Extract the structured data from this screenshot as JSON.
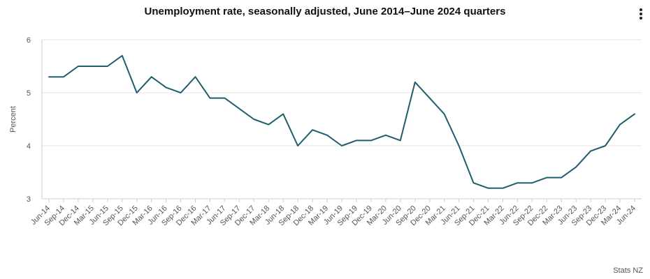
{
  "header": {
    "title": "Unemployment rate, seasonally adjusted, June 2014–June 2024 quarters",
    "menu_icon": "vertical-ellipsis-icon"
  },
  "credit": "Stats NZ",
  "colors": {
    "line": "#1f5d6e",
    "grid": "#e6e6e6",
    "axis": "#cccccc"
  },
  "chart_data": {
    "type": "line",
    "title": "Unemployment rate, seasonally adjusted, June 2014–June 2024 quarters",
    "xlabel": "",
    "ylabel": "Percent",
    "ylim": [
      3,
      6
    ],
    "yticks": [
      3,
      4,
      5,
      6
    ],
    "grid": true,
    "legend": "none",
    "categories": [
      "Jun-14",
      "Sep-14",
      "Dec-14",
      "Mar-15",
      "Jun-15",
      "Sep-15",
      "Dec-15",
      "Mar-16",
      "Jun-16",
      "Sep-16",
      "Dec-16",
      "Mar-17",
      "Jun-17",
      "Sep-17",
      "Dec-17",
      "Mar-18",
      "Jun-18",
      "Sep-18",
      "Dec-18",
      "Mar-19",
      "Jun-19",
      "Sep-19",
      "Dec-19",
      "Mar-20",
      "Jun-20",
      "Sep-20",
      "Dec-20",
      "Mar-21",
      "Jun-21",
      "Sep-21",
      "Dec-21",
      "Mar-22",
      "Jun-22",
      "Sep-22",
      "Dec-22",
      "Mar-23",
      "Jun-23",
      "Sep-23",
      "Dec-23",
      "Mar-24",
      "Jun-24"
    ],
    "series": [
      {
        "values": [
          5.3,
          5.3,
          5.5,
          5.5,
          5.5,
          5.7,
          5.0,
          5.3,
          5.1,
          5.0,
          5.3,
          4.9,
          4.9,
          4.7,
          4.5,
          4.4,
          4.6,
          4.0,
          4.3,
          4.2,
          4.0,
          4.1,
          4.1,
          4.2,
          4.1,
          5.2,
          4.9,
          4.6,
          4.0,
          3.3,
          3.2,
          3.2,
          3.3,
          3.3,
          3.4,
          3.4,
          3.6,
          3.9,
          4.0,
          4.4,
          4.6
        ]
      }
    ]
  }
}
